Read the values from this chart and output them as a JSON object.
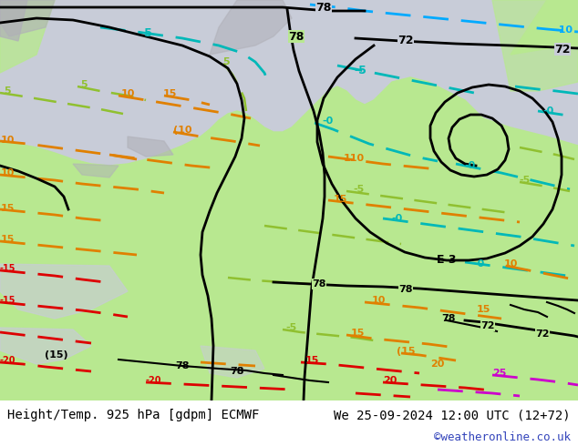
{
  "title_left": "Height/Temp. 925 hPa [gdpm] ECMWF",
  "title_right": "We 25-09-2024 12:00 UTC (12+72)",
  "watermark": "©weatheronline.co.uk",
  "bg_sea": "#c8ccd8",
  "bg_land": "#b8e890",
  "bg_gray": "#b0b0b8",
  "footer_bg": "#ffffff",
  "black": "#000000",
  "cyan_dark": "#00b8b8",
  "cyan_bright": "#00aaff",
  "green_line": "#90c030",
  "orange_line": "#e08000",
  "red_line": "#dd0000",
  "magenta_line": "#cc00cc"
}
